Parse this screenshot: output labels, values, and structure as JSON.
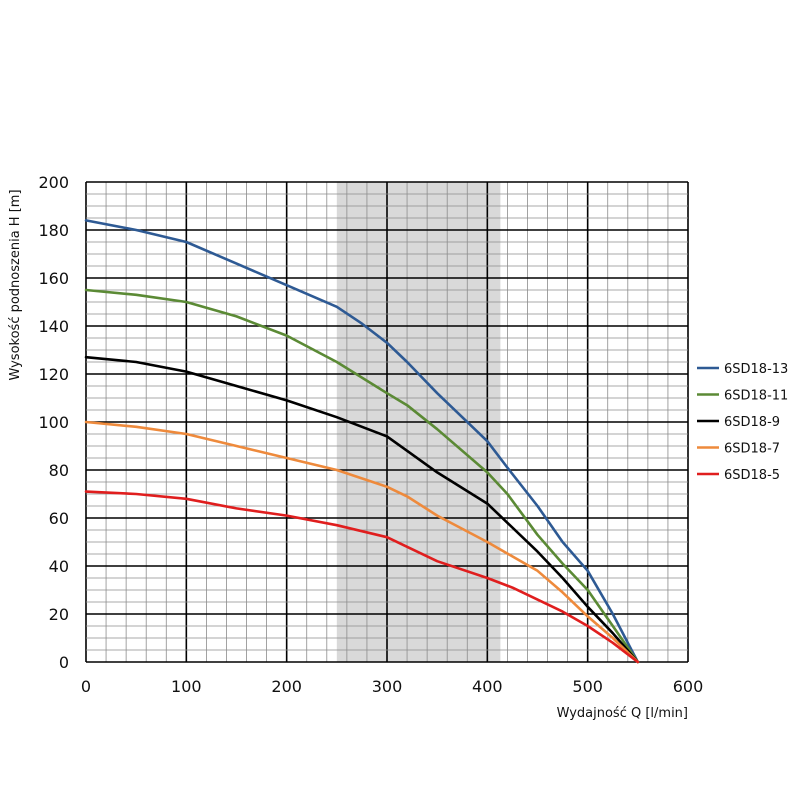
{
  "chart_data": {
    "type": "line",
    "xlabel": "Wydajność Q [l/min]",
    "ylabel": "Wysokość podnoszenia H [m]",
    "xlim": [
      0,
      600
    ],
    "ylim": [
      0,
      200
    ],
    "x_ticks": [
      "0",
      "100",
      "200",
      "300",
      "400",
      "500",
      "600"
    ],
    "y_ticks": [
      "0",
      "20",
      "40",
      "60",
      "80",
      "100",
      "120",
      "140",
      "160",
      "180",
      "200"
    ],
    "grid": true,
    "minor_grid": true,
    "highlight_band": {
      "x_from": 250,
      "x_to": 413,
      "color": "#d9d9d9"
    },
    "legend_position": "right",
    "series": [
      {
        "name": "6SD18-13",
        "color": "#2e5a94",
        "x": [
          0,
          50,
          100,
          150,
          200,
          250,
          275,
          300,
          320,
          350,
          400,
          420,
          450,
          475,
          500,
          525,
          550
        ],
        "y": [
          184,
          180,
          175,
          166,
          157,
          148,
          141,
          133,
          125,
          112,
          92,
          81,
          65,
          50,
          38,
          20,
          0
        ]
      },
      {
        "name": "6SD18-11",
        "color": "#5b8a35",
        "x": [
          0,
          50,
          100,
          150,
          200,
          250,
          300,
          320,
          350,
          400,
          420,
          450,
          475,
          500,
          525,
          550
        ],
        "y": [
          155,
          153,
          150,
          144,
          136,
          125,
          112,
          107,
          97,
          79,
          70,
          53,
          41,
          30,
          15,
          0
        ]
      },
      {
        "name": "6SD18-9",
        "color": "#000000",
        "x": [
          0,
          50,
          100,
          150,
          200,
          250,
          300,
          320,
          350,
          400,
          420,
          450,
          475,
          500,
          525,
          550
        ],
        "y": [
          127,
          125,
          121,
          115,
          109,
          102,
          94,
          88,
          79,
          66,
          58,
          46,
          35,
          23,
          12,
          0
        ]
      },
      {
        "name": "6SD18-7",
        "color": "#ee8a3c",
        "x": [
          0,
          50,
          100,
          150,
          200,
          250,
          300,
          320,
          350,
          400,
          450,
          475,
          500,
          525,
          550
        ],
        "y": [
          100,
          98,
          95,
          90,
          85,
          80,
          73,
          69,
          61,
          50,
          38,
          29,
          19,
          10,
          0
        ]
      },
      {
        "name": "6SD18-5",
        "color": "#e01e1e",
        "x": [
          0,
          50,
          100,
          150,
          200,
          250,
          300,
          320,
          350,
          400,
          425,
          450,
          475,
          500,
          525,
          550
        ],
        "y": [
          71,
          70,
          68,
          64,
          61,
          57,
          52,
          48,
          42,
          35,
          31,
          26,
          21,
          15,
          8,
          0
        ]
      }
    ]
  }
}
